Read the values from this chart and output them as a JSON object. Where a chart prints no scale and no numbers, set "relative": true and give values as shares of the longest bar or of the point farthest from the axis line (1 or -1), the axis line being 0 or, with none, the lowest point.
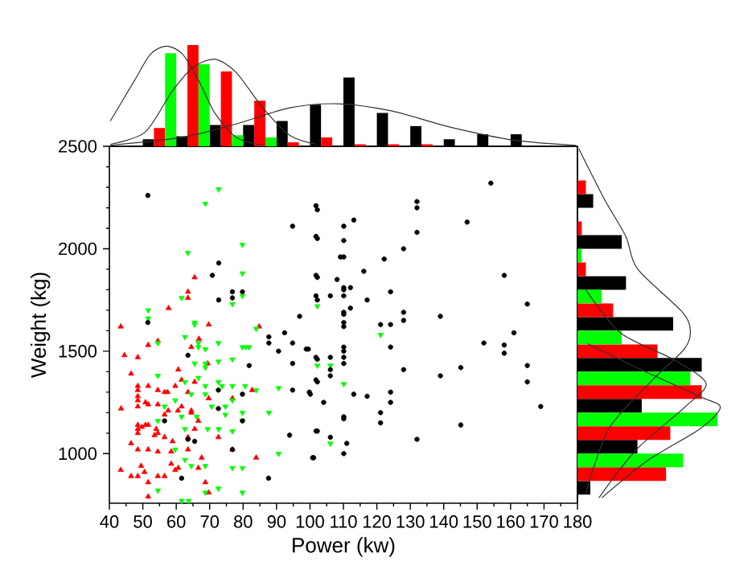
{
  "chart_data": [
    {
      "type": "scatter",
      "xlabel": "Power (kw)",
      "ylabel": "Weight (kg)",
      "xlim": [
        40,
        180
      ],
      "ylim": [
        758,
        2500
      ],
      "xticks": [
        40,
        50,
        60,
        70,
        80,
        90,
        100,
        110,
        120,
        130,
        140,
        150,
        160,
        170,
        180
      ],
      "yticks": [
        1000,
        1500,
        2000,
        2500
      ],
      "series": [
        {
          "color": "#ff0000",
          "marker": "triangle",
          "x": [
            43.4,
            44.5,
            46.5,
            48.5,
            51.6,
            43.5,
            46.5,
            43.4,
            46.5,
            48.5,
            48.5,
            48.5,
            48.5,
            48.5,
            48.5,
            48.5,
            48.5,
            48.5,
            49.5,
            48.5,
            51.6,
            50.8,
            51.6,
            50.8,
            51.6,
            49.7,
            51.6,
            50.5,
            51.6,
            51.6,
            54.5,
            54.5,
            54.5,
            54.0,
            54.5,
            53.5,
            54.5,
            54.5,
            56.5,
            57.4,
            56.5,
            57.6,
            56.5,
            58.9,
            58.5,
            57.7,
            60.6,
            59.7,
            61.6,
            61.6,
            60.5,
            60.6,
            59.7,
            63.5,
            63.5,
            65.5,
            66.8,
            64.5,
            65.5,
            63.5,
            64.5,
            64.5,
            66.6,
            65.5,
            63.5,
            63.5,
            67.6,
            66.6,
            69.7,
            69.4,
            69.7,
            68.7,
            69.7,
            72.6,
            76.8,
            76.8,
            82.7,
            83.9,
            84.8,
            56.5,
            58.5
          ],
          "values": [
            1620,
            1480,
            1390,
            1470,
            1530,
            1220,
            1050,
            920,
            890,
            1330,
            1310,
            1280,
            1260,
            1230,
            1140,
            1120,
            1100,
            1020,
            940,
            890,
            1330,
            1250,
            1240,
            1140,
            1140,
            1130,
            1020,
            910,
            860,
            790,
            1550,
            1310,
            1240,
            1120,
            1100,
            1090,
            1010,
            890,
            1300,
            1300,
            1190,
            1210,
            1080,
            1060,
            1010,
            1710,
            1410,
            1330,
            1360,
            1230,
            1210,
            930,
            920,
            1790,
            1760,
            1860,
            1560,
            1520,
            1350,
            1300,
            1210,
            1200,
            1160,
            1120,
            1080,
            1020,
            980,
            930,
            1630,
            1440,
            1270,
            860,
            810,
            1080,
            1270,
            1020,
            1310,
            980,
            1620,
            890,
            950
          ]
        },
        {
          "color": "#00ff00",
          "marker": "triangle down",
          "x": [
            72.7,
            68.7,
            79.8,
            63.5,
            79.8,
            61.6,
            76.8,
            51.6,
            51.6,
            79.8,
            65.5,
            65.5,
            83.9,
            54.5,
            62.6,
            66.6,
            66.6,
            68.7,
            72.6,
            79.8,
            80.8,
            81.8,
            68.7,
            68.7,
            65.5,
            72.6,
            76.8,
            66.6,
            68.7,
            72.6,
            73.7,
            62.6,
            54.5,
            59.7,
            56.5,
            64.5,
            68.7,
            76.8,
            80.6,
            70.6,
            74.7,
            74.7,
            79.8,
            79.8,
            83.9,
            87.7,
            76.8,
            66.1,
            61.6,
            54.5,
            62.6,
            69.4,
            72.7,
            76.8,
            90.6,
            90.6,
            59.7,
            62.6,
            64.5,
            68.7,
            76.8,
            79.8,
            54.5,
            61.6,
            63.7,
            68.7,
            72.6,
            79.8,
            102.2,
            121.1,
            102.2,
            106.1,
            110.1,
            106.1
          ],
          "values": [
            2290,
            2220,
            2020,
            1980,
            1880,
            1760,
            1730,
            1700,
            1660,
            1770,
            1640,
            1630,
            1610,
            1540,
            1570,
            1540,
            1520,
            1510,
            1540,
            1520,
            1520,
            1520,
            1440,
            1420,
            1440,
            1450,
            1460,
            1370,
            1330,
            1350,
            1330,
            1350,
            1380,
            1260,
            1230,
            1290,
            1290,
            1330,
            1330,
            1230,
            1230,
            1190,
            1200,
            1160,
            1310,
            1200,
            1260,
            1180,
            1180,
            1160,
            1120,
            1120,
            1120,
            1110,
            1320,
            1000,
            1020,
            970,
            940,
            940,
            930,
            930,
            820,
            770,
            770,
            810,
            830,
            810,
            1720,
            1580,
            1430,
            1430,
            1340,
            1050
          ]
        },
        {
          "color": "#000000",
          "marker": "circle",
          "x": [
            51.5,
            51.5,
            72.7,
            70.8,
            72.7,
            76.8,
            76.8,
            79.8,
            63.5,
            72.6,
            72.6,
            56.5,
            63.5,
            65.5,
            61.6,
            76.8,
            79.8,
            79.8,
            81.8,
            87.7,
            87.7,
            90.6,
            92.4,
            94.8,
            94.8,
            94.8,
            96.9,
            98.9,
            99.8,
            100.8,
            93.9,
            87.6,
            101.8,
            101.8,
            101.8,
            101.8,
            101.8,
            101.8,
            101.8,
            94.8,
            154.1,
            132,
            132,
            102.2,
            113.1,
            110.1,
            147,
            132,
            102.2,
            110.1,
            128,
            109.1,
            110.1,
            122.2,
            116.1,
            102.2,
            158.1,
            108.1,
            110.1,
            110.1,
            112.1,
            124.1,
            106.1,
            110.1,
            102.2,
            117.1,
            112.1,
            110.1,
            110.1,
            110.1,
            110.1,
            165,
            128,
            128,
            139,
            121.1,
            124.1,
            161,
            152,
            158.1,
            158.1,
            124.1,
            99.5,
            110.1,
            110.1,
            110.1,
            110.1,
            106.1,
            102.2,
            106.1,
            106.1,
            165,
            145.1,
            128,
            139,
            102.2,
            165,
            100.1,
            113.1,
            117.1,
            124.1,
            124.1,
            104.1,
            169,
            121.1,
            121.1,
            110.1,
            110.1,
            102.2,
            145.1,
            106.1,
            132,
            111,
            110.1,
            101.1
          ],
          "values": [
            2260,
            1640,
            1930,
            1870,
            1750,
            1790,
            1760,
            1790,
            1480,
            1310,
            1220,
            1160,
            1070,
            1060,
            880,
            1020,
            1290,
            1160,
            1430,
            1570,
            1540,
            1500,
            1590,
            1540,
            1440,
            1310,
            1670,
            1510,
            1300,
            980,
            1090,
            880,
            2210,
            2060,
            1870,
            1770,
            1470,
            1360,
            1110,
            2110,
            2320,
            2230,
            2200,
            2190,
            2140,
            2110,
            2130,
            2080,
            2050,
            2040,
            2000,
            1960,
            1960,
            1950,
            1890,
            1860,
            1870,
            1850,
            1810,
            1800,
            1810,
            1790,
            1770,
            1770,
            1750,
            1750,
            1710,
            1690,
            1680,
            1640,
            1620,
            1730,
            1690,
            1650,
            1670,
            1630,
            1630,
            1590,
            1540,
            1530,
            1490,
            1520,
            1510,
            1520,
            1500,
            1470,
            1440,
            1470,
            1460,
            1410,
            1380,
            1430,
            1420,
            1410,
            1380,
            1350,
            1350,
            1290,
            1290,
            1280,
            1300,
            1250,
            1250,
            1230,
            1200,
            1150,
            1180,
            1170,
            1110,
            1140,
            1080,
            1070,
            1050,
            1000,
            980
          ]
        }
      ]
    },
    {
      "type": "histogram",
      "relative": true,
      "xlim": [
        40,
        180
      ],
      "tick_labels": false,
      "bins": [
        50,
        60,
        70,
        80,
        90,
        100,
        110,
        120,
        130,
        140,
        150,
        160,
        170
      ],
      "series": [
        {
          "color": "#000000",
          "values": [
            0.07,
            0.1,
            0.21,
            0.21,
            0.25,
            0.41,
            0.68,
            0.33,
            0.2,
            0.07,
            0.12,
            0.12
          ]
        },
        {
          "color": "#ff0000",
          "values": [
            0.18,
            1.0,
            0.74,
            0.45,
            0.04,
            0.09,
            0.02,
            0.02,
            0.02,
            0,
            0,
            0
          ]
        },
        {
          "color": "#00ff00",
          "values": [
            0.92,
            0.81,
            0.11,
            0.09,
            0,
            0,
            0,
            0,
            0,
            0,
            0,
            0
          ]
        },
        {
          "type": "line",
          "color": "#333333",
          "x": [
            40.3,
            47.5,
            52.3,
            57.1,
            61.9,
            66.7,
            71.5,
            77.9,
            85.9
          ],
          "values": [
            0.25,
            0.65,
            0.91,
            0.99,
            0.91,
            0.65,
            0.33,
            0.09,
            0.01
          ]
        },
        {
          "type": "line",
          "color": "#333333",
          "x": [
            40.3,
            50.7,
            58.7,
            65.1,
            71.5,
            77.9,
            85.9,
            93.9,
            101.9
          ],
          "values": [
            0.02,
            0.14,
            0.54,
            0.78,
            0.86,
            0.73,
            0.38,
            0.11,
            0.02
          ]
        },
        {
          "type": "line",
          "color": "#333333",
          "x": [
            40.3,
            61.9,
            77.9,
            93.9,
            108.3,
            124.3,
            141.9,
            161.1,
            179.5
          ],
          "values": [
            0.01,
            0.09,
            0.22,
            0.38,
            0.42,
            0.35,
            0.19,
            0.06,
            0.01
          ]
        }
      ]
    },
    {
      "type": "histogram",
      "orientation": "horizontal",
      "relative": true,
      "ylim": [
        758,
        2500
      ],
      "tick_labels": false,
      "bins": [
        800,
        1000,
        1200,
        1400,
        1600,
        1800,
        2000,
        2200,
        2400
      ],
      "series": [
        {
          "color": "#000000",
          "values": [
            0.09,
            0.42,
            0.45,
            0.87,
            0.67,
            0.34,
            0.31,
            0.11
          ]
        },
        {
          "color": "#ff0000",
          "values": [
            0.62,
            0.65,
            0.87,
            0.56,
            0.25,
            0.06,
            0.03,
            0.06
          ]
        },
        {
          "color": "#00ff00",
          "values": [
            0.74,
            0.98,
            0.79,
            0.31,
            0.17,
            0.03,
            0,
            0
          ]
        },
        {
          "type": "line",
          "color": "#333333",
          "x": [
            810,
            1122,
            1356,
            1512,
            1603,
            1694,
            1902,
            2058,
            2240,
            2487
          ],
          "values": [
            0.06,
            0.22,
            0.52,
            0.75,
            0.79,
            0.73,
            0.42,
            0.34,
            0.19,
            0.01
          ]
        },
        {
          "type": "line",
          "color": "#333333",
          "x": [
            784,
            1018,
            1226,
            1343,
            1460,
            1590,
            1798
          ],
          "values": [
            0.15,
            0.41,
            0.75,
            0.9,
            0.67,
            0.3,
            0.06
          ]
        },
        {
          "type": "line",
          "color": "#333333",
          "x": [
            784,
            966,
            1122,
            1226,
            1278,
            1408,
            1538
          ],
          "values": [
            0.17,
            0.49,
            0.86,
            1.0,
            0.86,
            0.45,
            0.07
          ]
        }
      ]
    }
  ]
}
